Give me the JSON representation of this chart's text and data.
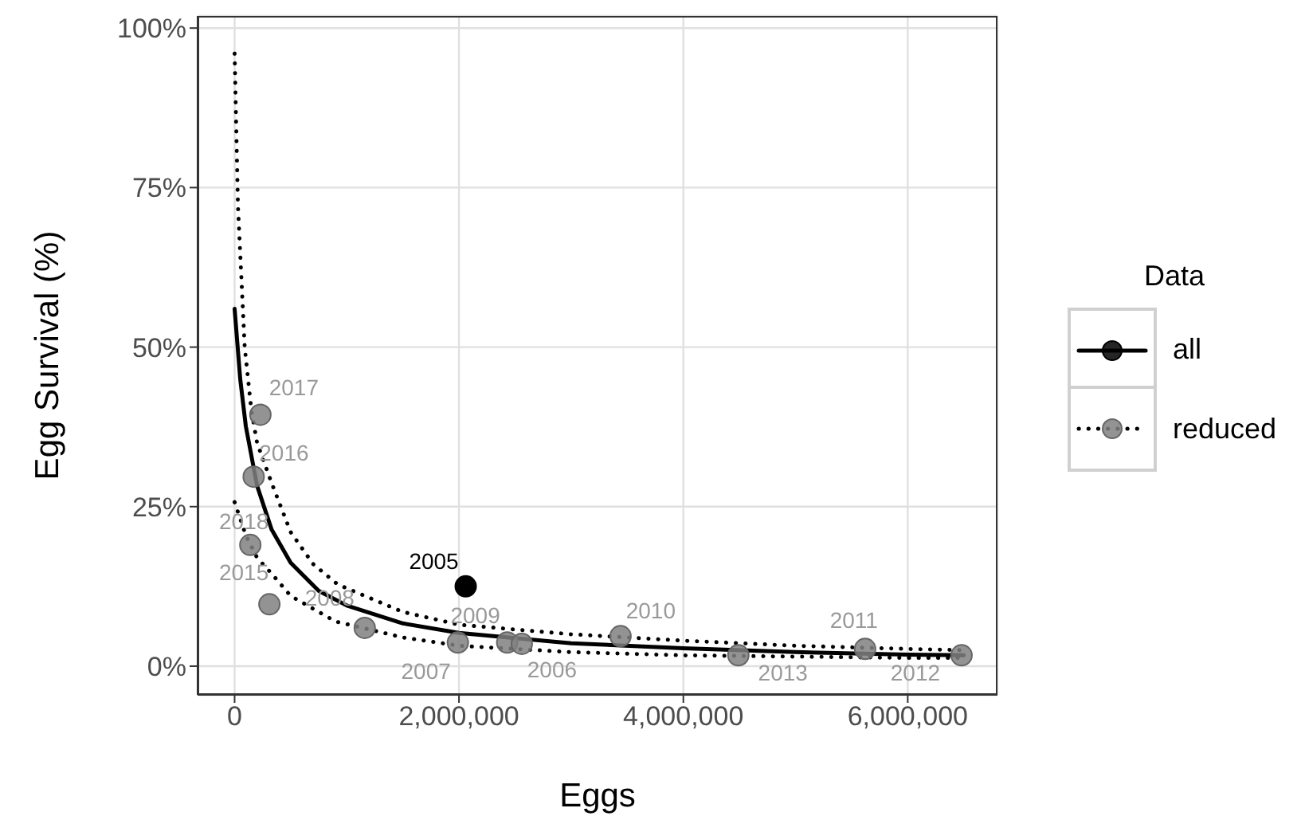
{
  "chart_data": {
    "type": "scatter",
    "xlabel": "Eggs",
    "ylabel": "Egg Survival (%)",
    "legend_title": "Data",
    "legend": "right",
    "grid": true,
    "xlim": [
      -330000,
      6800000
    ],
    "ylim": [
      -4.5,
      101.9
    ],
    "xticks": [
      {
        "value": 0,
        "label": "0"
      },
      {
        "value": 2000000,
        "label": "2,000,000"
      },
      {
        "value": 4000000,
        "label": "4,000,000"
      },
      {
        "value": 6000000,
        "label": "6,000,000"
      }
    ],
    "yticks": [
      {
        "value": 0,
        "label": "0%"
      },
      {
        "value": 25,
        "label": "25%"
      },
      {
        "value": 50,
        "label": "50%"
      },
      {
        "value": 75,
        "label": "75%"
      },
      {
        "value": 100,
        "label": "100%"
      }
    ],
    "series": [
      {
        "name": "all",
        "type": "line",
        "color": "#000000",
        "line_style": "solid",
        "x": [
          0,
          50000,
          100000,
          200000,
          330000,
          500000,
          750000,
          1000000,
          1500000,
          2000000,
          3000000,
          4000000,
          5000000,
          6000000,
          6500000
        ],
        "values": [
          56,
          45,
          37.6,
          28.3,
          21.4,
          16.2,
          11.8,
          9.5,
          6.7,
          5.2,
          3.6,
          2.8,
          2.2,
          1.8,
          1.7
        ]
      },
      {
        "name": "reduced",
        "type": "line",
        "color": "#000000",
        "line_style": "dotted",
        "x": [
          0,
          30000,
          90000,
          150000,
          200000,
          330000,
          500000,
          700000,
          920000,
          1500000,
          2000000,
          3000000,
          4000000,
          5000000,
          6000000,
          6500000
        ],
        "values": [
          96,
          72,
          50,
          40,
          35,
          28.7,
          21,
          16,
          12.8,
          8.5,
          6.5,
          5,
          4,
          3.2,
          2.7,
          2.5
        ]
      },
      {
        "type": "line",
        "color": "#000000",
        "line_style": "dotted",
        "x": [
          0,
          100000,
          200000,
          330000,
          500000,
          900000,
          1500000,
          2000000,
          3000000,
          4000000,
          5000000,
          6000000,
          6500000
        ],
        "values": [
          25.7,
          20.5,
          17,
          14.5,
          11,
          7,
          4.5,
          3.2,
          2.2,
          1.7,
          1.5,
          1.3,
          1.3
        ]
      },
      {
        "color": "#000000",
        "x": [
          2060000
        ],
        "values": [
          12.5
        ]
      },
      {
        "color": "#808080",
        "x": [
          230000,
          170000,
          140000,
          310000,
          1160000,
          1990000,
          2430000,
          2560000,
          3440000,
          4490000,
          5620000,
          6480000
        ],
        "values": [
          39.4,
          29.7,
          19,
          9.7,
          6,
          3.7,
          3.7,
          3.5,
          4.7,
          1.7,
          2.7,
          1.7
        ]
      }
    ],
    "annotations": [
      {
        "text": "2017",
        "x": 230000,
        "y": 39.4
      },
      {
        "text": "2016",
        "x": 170000,
        "y": 29.7
      },
      {
        "text": "2018",
        "x": 140000,
        "y": 19
      },
      {
        "text": "2015",
        "x": 310000,
        "y": 9.7
      },
      {
        "text": "2008",
        "x": 1160000,
        "y": 6
      },
      {
        "text": "2007",
        "x": 1990000,
        "y": 3.7
      },
      {
        "text": "2009",
        "x": 2430000,
        "y": 3.7
      },
      {
        "text": "2006",
        "x": 2560000,
        "y": 3.5
      },
      {
        "text": "2010",
        "x": 3440000,
        "y": 4.7
      },
      {
        "text": "2013",
        "x": 4490000,
        "y": 1.7
      },
      {
        "text": "2011",
        "x": 5620000,
        "y": 2.7
      },
      {
        "text": "2012",
        "x": 6480000,
        "y": 1.7
      },
      {
        "text": "2005",
        "x": 2060000,
        "y": 12.5
      }
    ]
  }
}
